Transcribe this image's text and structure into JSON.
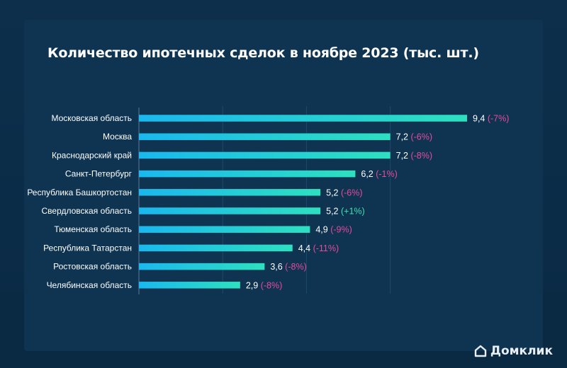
{
  "page": {
    "title": "Количество ипотечных сделок в ноябре 2023 (тыс. шт.)"
  },
  "brand": {
    "name": "Домклик",
    "icon": "house-icon"
  },
  "colors": {
    "bar_start": "#1ab8ee",
    "bar_end": "#2de0c0",
    "change_negative": "#e84a9b",
    "change_positive": "#3fe0b0",
    "value_text": "#ffffff",
    "label_text": "#ffffff"
  },
  "chart_data": {
    "type": "bar",
    "orientation": "horizontal",
    "title": "Количество ипотечных сделок в ноябре 2023 (тыс. шт.)",
    "xlim": [
      0,
      9.4
    ],
    "grid": true,
    "categories": [
      "Московская область",
      "Москва",
      "Краснодарский край",
      "Санкт-Петербург",
      "Республика Башкортостан",
      "Свердловская область",
      "Тюменская область",
      "Республика Татарстан",
      "Ростовская область",
      "Челябинская область"
    ],
    "values": [
      9.4,
      7.2,
      7.2,
      6.2,
      5.2,
      5.2,
      4.9,
      4.4,
      3.6,
      2.9
    ],
    "value_labels": [
      "9,4",
      "7,2",
      "7,2",
      "6,2",
      "5,2",
      "5,2",
      "4,9",
      "4,4",
      "3,6",
      "2,9"
    ],
    "changes": [
      "(-7%)",
      "(-6%)",
      "(-8%)",
      "(-1%)",
      "(-6%)",
      "(+1%)",
      "(-9%)",
      "(-11%)",
      "(-8%)",
      "(-8%)"
    ]
  }
}
